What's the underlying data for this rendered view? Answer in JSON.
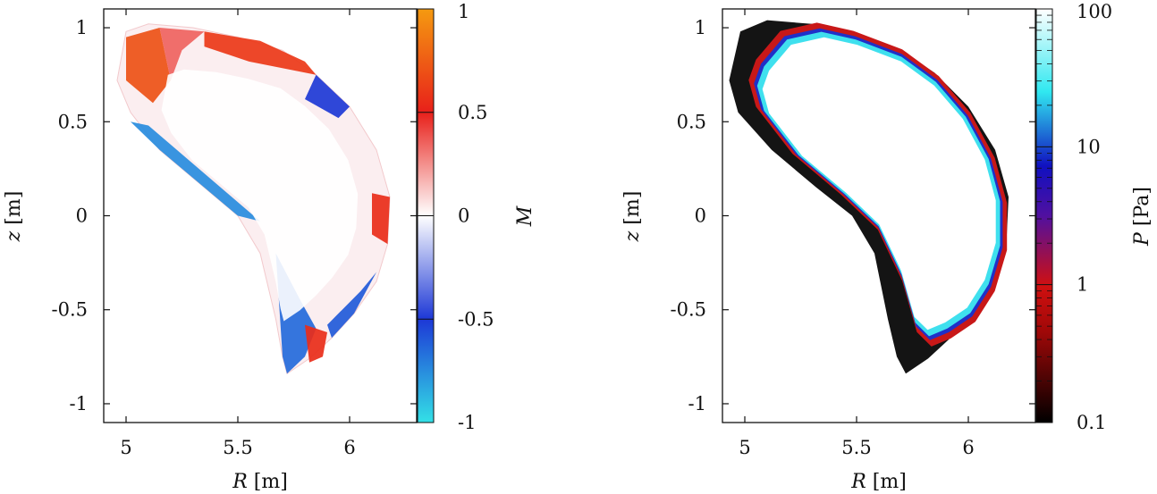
{
  "chart_data": [
    {
      "type": "heatmap",
      "description_of_field": "poloidal cross-section map",
      "xlabel_var": "R",
      "xlabel_unit": "[m]",
      "ylabel_var": "z",
      "ylabel_unit": "[m]",
      "xlim": [
        4.9,
        6.3
      ],
      "ylim": [
        -1.1,
        1.1
      ],
      "xticks": [
        5,
        5.5,
        6
      ],
      "xtick_labels": [
        "5",
        "5.5",
        "6"
      ],
      "yticks": [
        1,
        0.5,
        0,
        -0.5,
        -1
      ],
      "ytick_labels": [
        "1",
        "0.5",
        "0",
        "-0.5",
        "-1"
      ],
      "colorbar": {
        "label_var": "M",
        "label_unit": "",
        "scale": "linear",
        "range": [
          -1,
          1
        ],
        "ticks": [
          1,
          0.5,
          0,
          -0.5,
          -1
        ],
        "tick_labels": [
          "1",
          "0.5",
          "0",
          "-0.5",
          "-1"
        ],
        "colors": [
          "#33e0e6",
          "#1d38d6",
          "#ffffff",
          "#e8201a",
          "#f59a10"
        ]
      },
      "boundary": [
        [
          5.0,
          0.98
        ],
        [
          5.1,
          1.02
        ],
        [
          5.3,
          1.0
        ],
        [
          5.5,
          0.95
        ],
        [
          5.7,
          0.88
        ],
        [
          5.85,
          0.75
        ],
        [
          6.0,
          0.58
        ],
        [
          6.12,
          0.35
        ],
        [
          6.18,
          0.1
        ],
        [
          6.17,
          -0.15
        ],
        [
          6.12,
          -0.35
        ],
        [
          6.02,
          -0.52
        ],
        [
          5.92,
          -0.65
        ],
        [
          5.82,
          -0.76
        ],
        [
          5.72,
          -0.84
        ],
        [
          5.7,
          -0.75
        ],
        [
          5.67,
          -0.55
        ],
        [
          5.6,
          -0.2
        ],
        [
          5.5,
          0.0
        ],
        [
          5.35,
          0.15
        ],
        [
          5.15,
          0.35
        ],
        [
          5.02,
          0.55
        ],
        [
          4.96,
          0.72
        ]
      ],
      "regions": [
        {
          "M": 0.7,
          "poly": [
            [
              5.0,
              0.95
            ],
            [
              5.15,
              1.0
            ],
            [
              5.2,
              0.72
            ],
            [
              5.12,
              0.6
            ],
            [
              5.0,
              0.72
            ]
          ]
        },
        {
          "M": 0.35,
          "poly": [
            [
              5.15,
              1.0
            ],
            [
              5.35,
              0.98
            ],
            [
              5.25,
              0.88
            ],
            [
              5.2,
              0.72
            ]
          ]
        },
        {
          "M": 0.6,
          "poly": [
            [
              5.35,
              0.98
            ],
            [
              5.6,
              0.93
            ],
            [
              5.8,
              0.82
            ],
            [
              5.85,
              0.75
            ],
            [
              5.55,
              0.82
            ],
            [
              5.35,
              0.9
            ]
          ]
        },
        {
          "M": -0.5,
          "poly": [
            [
              5.85,
              0.75
            ],
            [
              6.0,
              0.58
            ],
            [
              5.95,
              0.52
            ],
            [
              5.8,
              0.62
            ]
          ]
        },
        {
          "M": 0.55,
          "poly": [
            [
              6.1,
              0.12
            ],
            [
              6.18,
              0.1
            ],
            [
              6.17,
              -0.15
            ],
            [
              6.1,
              -0.1
            ]
          ]
        },
        {
          "M": -0.75,
          "poly": [
            [
              5.02,
              0.5
            ],
            [
              5.1,
              0.48
            ],
            [
              5.6,
              -0.03
            ],
            [
              5.5,
              0.0
            ],
            [
              5.35,
              0.15
            ],
            [
              5.15,
              0.35
            ]
          ]
        },
        {
          "M": -0.65,
          "poly": [
            [
              5.67,
              -0.2
            ],
            [
              5.78,
              -0.45
            ],
            [
              5.85,
              -0.6
            ],
            [
              5.8,
              -0.75
            ],
            [
              5.72,
              -0.84
            ],
            [
              5.7,
              -0.75
            ]
          ]
        },
        {
          "M": -0.6,
          "poly": [
            [
              5.9,
              -0.58
            ],
            [
              6.05,
              -0.4
            ],
            [
              6.12,
              -0.3
            ],
            [
              6.02,
              -0.52
            ],
            [
              5.92,
              -0.65
            ]
          ]
        },
        {
          "M": 0.55,
          "poly": [
            [
              5.8,
              -0.58
            ],
            [
              5.9,
              -0.62
            ],
            [
              5.88,
              -0.75
            ],
            [
              5.82,
              -0.78
            ]
          ]
        }
      ]
    },
    {
      "type": "heatmap",
      "description_of_field": "poloidal cross-section map",
      "xlabel_var": "R",
      "xlabel_unit": "[m]",
      "ylabel_var": "z",
      "ylabel_unit": "[m]",
      "xlim": [
        4.9,
        6.3
      ],
      "ylim": [
        -1.1,
        1.1
      ],
      "xticks": [
        5,
        5.5,
        6
      ],
      "xtick_labels": [
        "5",
        "5.5",
        "6"
      ],
      "yticks": [
        1,
        0.5,
        0,
        -0.5,
        -1
      ],
      "ytick_labels": [
        "1",
        "0.5",
        "0",
        "-0.5",
        "-1"
      ],
      "colorbar": {
        "label_var": "P",
        "label_unit": "[Pa]",
        "scale": "log",
        "range": [
          0.1,
          100
        ],
        "ticks": [
          100,
          10,
          1,
          0.1
        ],
        "tick_labels": [
          "100",
          "10",
          "1",
          "0.1"
        ],
        "colors": [
          "#000000",
          "#d01010",
          "#1010c0",
          "#30e8f0",
          "#ffffff"
        ]
      },
      "boundary": [
        [
          4.98,
          0.98
        ],
        [
          5.1,
          1.04
        ],
        [
          5.3,
          1.02
        ],
        [
          5.5,
          0.96
        ],
        [
          5.7,
          0.88
        ],
        [
          5.85,
          0.76
        ],
        [
          6.0,
          0.58
        ],
        [
          6.12,
          0.35
        ],
        [
          6.18,
          0.1
        ],
        [
          6.17,
          -0.15
        ],
        [
          6.12,
          -0.35
        ],
        [
          6.02,
          -0.52
        ],
        [
          5.92,
          -0.65
        ],
        [
          5.82,
          -0.76
        ],
        [
          5.72,
          -0.84
        ],
        [
          5.68,
          -0.75
        ],
        [
          5.64,
          -0.55
        ],
        [
          5.58,
          -0.2
        ],
        [
          5.48,
          0.0
        ],
        [
          5.32,
          0.15
        ],
        [
          5.12,
          0.35
        ],
        [
          4.97,
          0.55
        ],
        [
          4.93,
          0.72
        ]
      ],
      "core": [
        [
          5.1,
          0.78
        ],
        [
          5.2,
          0.92
        ],
        [
          5.35,
          0.96
        ],
        [
          5.5,
          0.92
        ],
        [
          5.7,
          0.83
        ],
        [
          5.85,
          0.7
        ],
        [
          5.98,
          0.52
        ],
        [
          6.08,
          0.3
        ],
        [
          6.13,
          0.08
        ],
        [
          6.13,
          -0.15
        ],
        [
          6.08,
          -0.35
        ],
        [
          6.0,
          -0.5
        ],
        [
          5.9,
          -0.58
        ],
        [
          5.82,
          -0.62
        ],
        [
          5.76,
          -0.55
        ],
        [
          5.7,
          -0.3
        ],
        [
          5.6,
          -0.05
        ],
        [
          5.45,
          0.12
        ],
        [
          5.25,
          0.32
        ],
        [
          5.1,
          0.55
        ],
        [
          5.07,
          0.68
        ]
      ]
    }
  ]
}
